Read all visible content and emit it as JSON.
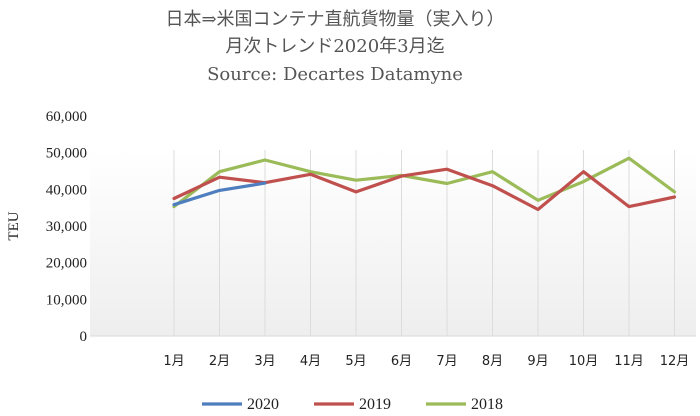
{
  "chart_data": {
    "type": "line",
    "title": "日本⇒米国コンテナ直航貨物量（実入り）",
    "subtitle": "月次トレンド2020年3月迄",
    "source": "Source: Decartes Datamyne",
    "xlabel": "",
    "ylabel": "TEU",
    "ylim": [
      0,
      60000
    ],
    "yticks": [
      0,
      10000,
      20000,
      30000,
      40000,
      50000,
      60000
    ],
    "ytick_labels": [
      "0",
      "10,000",
      "20,000",
      "30,000",
      "40,000",
      "50,000",
      "60,000"
    ],
    "categories": [
      "1月",
      "2月",
      "3月",
      "4月",
      "5月",
      "6月",
      "7月",
      "8月",
      "9月",
      "10月",
      "11月",
      "12月"
    ],
    "grid": "vertical",
    "legend_position": "bottom",
    "series": [
      {
        "name": "2020",
        "color": "#4f7ebf",
        "values": [
          35800,
          39700,
          41700,
          null,
          null,
          null,
          null,
          null,
          null,
          null,
          null,
          null
        ]
      },
      {
        "name": "2019",
        "color": "#c0504d",
        "values": [
          37500,
          43300,
          41800,
          44100,
          39300,
          43600,
          45500,
          41000,
          34500,
          44800,
          35300,
          37900
        ]
      },
      {
        "name": "2018",
        "color": "#9bbb59",
        "values": [
          35300,
          44800,
          48000,
          44800,
          42500,
          43800,
          41600,
          44800,
          37000,
          42100,
          48500,
          39300
        ]
      }
    ]
  }
}
